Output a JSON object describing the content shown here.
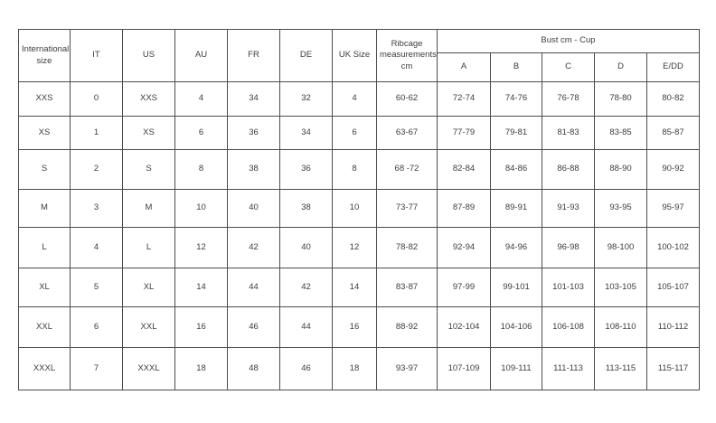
{
  "colors": {
    "background": "#ffffff",
    "border": "#4d4d4d",
    "text": "#3d3d3d"
  },
  "chart_data": {
    "type": "table",
    "header": {
      "simple_columns": [
        "International size",
        "IT",
        "US",
        "AU",
        "FR",
        "DE",
        "UK Size",
        "Ribcage measurements cm"
      ],
      "group_header": "Bust cm - Cup",
      "group_columns": [
        "A",
        "B",
        "C",
        "D",
        "E/DD"
      ]
    },
    "rows": [
      [
        "XXS",
        "0",
        "XXS",
        "4",
        "34",
        "32",
        "4",
        "60-62",
        "72-74",
        "74-76",
        "76-78",
        "78-80",
        "80-82"
      ],
      [
        "XS",
        "1",
        "XS",
        "6",
        "36",
        "34",
        "6",
        "63-67",
        "77-79",
        "79-81",
        "81-83",
        "83-85",
        "85-87"
      ],
      [
        "S",
        "2",
        "S",
        "8",
        "38",
        "36",
        "8",
        "68 -72",
        "82-84",
        "84-86",
        "86-88",
        "88-90",
        "90-92"
      ],
      [
        "M",
        "3",
        "M",
        "10",
        "40",
        "38",
        "10",
        "73-77",
        "87-89",
        "89-91",
        "91-93",
        "93-95",
        "95-97"
      ],
      [
        "L",
        "4",
        "L",
        "12",
        "42",
        "40",
        "12",
        "78-82",
        "92-94",
        "94-96",
        "96-98",
        "98-100",
        "100-102"
      ],
      [
        "XL",
        "5",
        "XL",
        "14",
        "44",
        "42",
        "14",
        "83-87",
        "97-99",
        "99-101",
        "101-103",
        "103-105",
        "105-107"
      ],
      [
        "XXL",
        "6",
        "XXL",
        "16",
        "46",
        "44",
        "16",
        "88-92",
        "102-104",
        "104-106",
        "106-108",
        "108-110",
        "110-112"
      ],
      [
        "XXXL",
        "7",
        "XXXL",
        "18",
        "48",
        "46",
        "18",
        "93-97",
        "107-109",
        "109-111",
        "111-113",
        "113-115",
        "115-117"
      ]
    ]
  }
}
